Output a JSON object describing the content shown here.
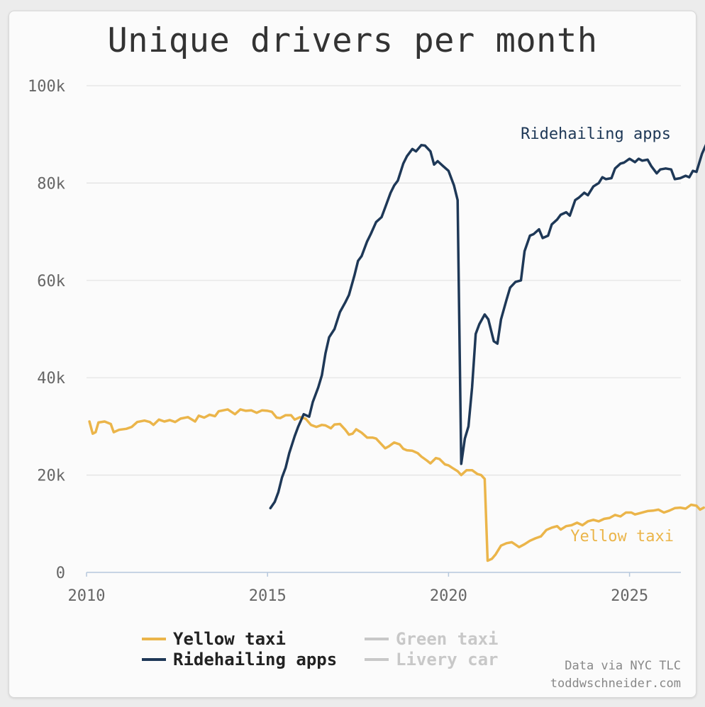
{
  "title": "Unique drivers per month",
  "credits": [
    "Data via NYC TLC",
    "toddwschneider.com"
  ],
  "colors": {
    "yellow": "#ebb54a",
    "ridehailing": "#1e3857",
    "inactive": "#c8c8c8",
    "grid": "#e2e2e2",
    "axis": "#b6c8dc",
    "tick_text": "#666666"
  },
  "legend": [
    {
      "label": "Yellow taxi",
      "color": "#ebb54a",
      "active": true
    },
    {
      "label": "Ridehailing apps",
      "color": "#1e3857",
      "active": true
    },
    {
      "label": "Green taxi",
      "color": "#c8c8c8",
      "active": false
    },
    {
      "label": "Livery car",
      "color": "#c8c8c8",
      "active": false
    }
  ],
  "chart_data": {
    "type": "line",
    "title": "Unique drivers per month",
    "xlabel": "",
    "ylabel": "",
    "xlim": [
      2010,
      2026.3
    ],
    "ylim": [
      0,
      100000
    ],
    "x_ticks": [
      2010,
      2015,
      2020,
      2025
    ],
    "x_tick_labels": [
      "2010",
      "2015",
      "2020",
      "2025"
    ],
    "y_ticks": [
      0,
      20000,
      40000,
      60000,
      80000,
      100000
    ],
    "y_tick_labels": [
      "0",
      "20k",
      "40k",
      "60k",
      "80k",
      "100k"
    ],
    "grid": true,
    "series": [
      {
        "name": "Yellow taxi",
        "color": "#ebb54a",
        "direct_label": "Yellow taxi",
        "points": [
          [
            2010.08,
            31000
          ],
          [
            2010.17,
            28500
          ],
          [
            2010.25,
            28800
          ],
          [
            2010.33,
            30800
          ],
          [
            2010.5,
            31000
          ],
          [
            2010.67,
            30500
          ],
          [
            2010.75,
            28800
          ],
          [
            2010.9,
            29300
          ],
          [
            2011.1,
            29500
          ],
          [
            2011.25,
            29900
          ],
          [
            2011.4,
            30900
          ],
          [
            2011.6,
            31200
          ],
          [
            2011.75,
            30900
          ],
          [
            2011.85,
            30300
          ],
          [
            2012.0,
            31400
          ],
          [
            2012.15,
            31000
          ],
          [
            2012.3,
            31300
          ],
          [
            2012.45,
            30900
          ],
          [
            2012.6,
            31600
          ],
          [
            2012.8,
            31900
          ],
          [
            2013.0,
            31000
          ],
          [
            2013.1,
            32200
          ],
          [
            2013.25,
            31800
          ],
          [
            2013.4,
            32400
          ],
          [
            2013.55,
            32100
          ],
          [
            2013.65,
            33100
          ],
          [
            2013.9,
            33500
          ],
          [
            2014.1,
            32500
          ],
          [
            2014.25,
            33500
          ],
          [
            2014.4,
            33200
          ],
          [
            2014.55,
            33300
          ],
          [
            2014.7,
            32800
          ],
          [
            2014.85,
            33300
          ],
          [
            2015.0,
            33200
          ],
          [
            2015.12,
            33000
          ],
          [
            2015.25,
            31800
          ],
          [
            2015.35,
            31700
          ],
          [
            2015.5,
            32300
          ],
          [
            2015.65,
            32300
          ],
          [
            2015.75,
            31400
          ],
          [
            2015.9,
            31900
          ],
          [
            2016.05,
            31600
          ],
          [
            2016.2,
            30300
          ],
          [
            2016.35,
            29900
          ],
          [
            2016.5,
            30300
          ],
          [
            2016.6,
            30200
          ],
          [
            2016.75,
            29600
          ],
          [
            2016.85,
            30400
          ],
          [
            2017.0,
            30500
          ],
          [
            2017.15,
            29300
          ],
          [
            2017.25,
            28300
          ],
          [
            2017.35,
            28500
          ],
          [
            2017.45,
            29400
          ],
          [
            2017.6,
            28700
          ],
          [
            2017.75,
            27700
          ],
          [
            2017.9,
            27700
          ],
          [
            2018.0,
            27500
          ],
          [
            2018.1,
            26700
          ],
          [
            2018.25,
            25500
          ],
          [
            2018.35,
            25900
          ],
          [
            2018.5,
            26700
          ],
          [
            2018.65,
            26300
          ],
          [
            2018.75,
            25400
          ],
          [
            2018.85,
            25100
          ],
          [
            2019.0,
            25000
          ],
          [
            2019.15,
            24500
          ],
          [
            2019.25,
            23800
          ],
          [
            2019.4,
            23000
          ],
          [
            2019.5,
            22400
          ],
          [
            2019.65,
            23500
          ],
          [
            2019.75,
            23300
          ],
          [
            2019.9,
            22200
          ],
          [
            2020.0,
            22000
          ],
          [
            2020.1,
            21500
          ],
          [
            2020.25,
            20800
          ],
          [
            2020.35,
            20000
          ],
          [
            2020.5,
            21000
          ],
          [
            2020.65,
            21000
          ],
          [
            2020.8,
            20200
          ],
          [
            2020.9,
            20000
          ],
          [
            2021.0,
            19200
          ],
          [
            2021.08,
            2400
          ],
          [
            2021.2,
            2800
          ],
          [
            2021.3,
            3700
          ],
          [
            2021.45,
            5500
          ],
          [
            2021.6,
            6000
          ],
          [
            2021.75,
            6200
          ],
          [
            2021.85,
            5700
          ],
          [
            2021.95,
            5200
          ],
          [
            2022.1,
            5800
          ],
          [
            2022.25,
            6500
          ],
          [
            2022.4,
            7000
          ],
          [
            2022.55,
            7400
          ],
          [
            2022.7,
            8700
          ],
          [
            2022.85,
            9200
          ],
          [
            2023.0,
            9500
          ],
          [
            2023.1,
            8800
          ],
          [
            2023.25,
            9500
          ],
          [
            2023.4,
            9700
          ],
          [
            2023.55,
            10200
          ],
          [
            2023.7,
            9700
          ],
          [
            2023.85,
            10500
          ],
          [
            2024.0,
            10800
          ],
          [
            2024.15,
            10500
          ],
          [
            2024.3,
            11000
          ],
          [
            2024.45,
            11200
          ],
          [
            2024.6,
            11800
          ],
          [
            2024.75,
            11500
          ],
          [
            2024.9,
            12300
          ],
          [
            2025.05,
            12300
          ],
          [
            2025.15,
            11900
          ],
          [
            2025.3,
            12200
          ],
          [
            2025.5,
            12600
          ],
          [
            2025.65,
            12700
          ],
          [
            2025.8,
            12900
          ],
          [
            2025.95,
            12300
          ],
          [
            2026.1,
            12700
          ],
          [
            2026.25,
            13200
          ],
          [
            2026.4,
            13300
          ],
          [
            2026.55,
            13100
          ],
          [
            2026.7,
            13900
          ],
          [
            2026.85,
            13700
          ],
          [
            2026.95,
            12900
          ],
          [
            2027.05,
            13300
          ]
        ]
      },
      {
        "name": "Ridehailing apps",
        "color": "#1e3857",
        "direct_label": "Ridehailing apps",
        "points": [
          [
            2015.08,
            13200
          ],
          [
            2015.2,
            14500
          ],
          [
            2015.3,
            16500
          ],
          [
            2015.4,
            19500
          ],
          [
            2015.5,
            21500
          ],
          [
            2015.6,
            24500
          ],
          [
            2015.75,
            28000
          ],
          [
            2015.85,
            30000
          ],
          [
            2016.0,
            32500
          ],
          [
            2016.15,
            32000
          ],
          [
            2016.25,
            35000
          ],
          [
            2016.4,
            38000
          ],
          [
            2016.5,
            40500
          ],
          [
            2016.6,
            45000
          ],
          [
            2016.7,
            48300
          ],
          [
            2016.85,
            50000
          ],
          [
            2017.0,
            53500
          ],
          [
            2017.15,
            55500
          ],
          [
            2017.25,
            57000
          ],
          [
            2017.4,
            61000
          ],
          [
            2017.5,
            64000
          ],
          [
            2017.6,
            65000
          ],
          [
            2017.75,
            68000
          ],
          [
            2017.85,
            69500
          ],
          [
            2018.0,
            72000
          ],
          [
            2018.15,
            73000
          ],
          [
            2018.25,
            75000
          ],
          [
            2018.4,
            78000
          ],
          [
            2018.5,
            79500
          ],
          [
            2018.6,
            80500
          ],
          [
            2018.75,
            84000
          ],
          [
            2018.85,
            85500
          ],
          [
            2019.0,
            87000
          ],
          [
            2019.1,
            86500
          ],
          [
            2019.25,
            87800
          ],
          [
            2019.35,
            87700
          ],
          [
            2019.5,
            86500
          ],
          [
            2019.6,
            83800
          ],
          [
            2019.7,
            84500
          ],
          [
            2019.85,
            83500
          ],
          [
            2020.0,
            82500
          ],
          [
            2020.15,
            79500
          ],
          [
            2020.25,
            76500
          ],
          [
            2020.35,
            22300
          ],
          [
            2020.45,
            27500
          ],
          [
            2020.55,
            30000
          ],
          [
            2020.65,
            38000
          ],
          [
            2020.75,
            49000
          ],
          [
            2020.85,
            51000
          ],
          [
            2021.0,
            53000
          ],
          [
            2021.1,
            52000
          ],
          [
            2021.25,
            47500
          ],
          [
            2021.35,
            47000
          ],
          [
            2021.45,
            52000
          ],
          [
            2021.6,
            56000
          ],
          [
            2021.7,
            58500
          ],
          [
            2021.85,
            59700
          ],
          [
            2022.0,
            60000
          ],
          [
            2022.1,
            66000
          ],
          [
            2022.25,
            69200
          ],
          [
            2022.35,
            69500
          ],
          [
            2022.5,
            70500
          ],
          [
            2022.6,
            68700
          ],
          [
            2022.75,
            69200
          ],
          [
            2022.85,
            71500
          ],
          [
            2023.0,
            72500
          ],
          [
            2023.1,
            73500
          ],
          [
            2023.25,
            74000
          ],
          [
            2023.35,
            73300
          ],
          [
            2023.5,
            76500
          ],
          [
            2023.6,
            77000
          ],
          [
            2023.75,
            78000
          ],
          [
            2023.85,
            77500
          ],
          [
            2024.0,
            79300
          ],
          [
            2024.15,
            80000
          ],
          [
            2024.25,
            81200
          ],
          [
            2024.35,
            80800
          ],
          [
            2024.5,
            81000
          ],
          [
            2024.6,
            83000
          ],
          [
            2024.75,
            84000
          ],
          [
            2024.85,
            84200
          ],
          [
            2025.0,
            85000
          ],
          [
            2025.15,
            84300
          ],
          [
            2025.25,
            85000
          ],
          [
            2025.35,
            84600
          ],
          [
            2025.5,
            84800
          ],
          [
            2025.6,
            83500
          ],
          [
            2025.75,
            82000
          ],
          [
            2025.85,
            82800
          ],
          [
            2026.0,
            83000
          ],
          [
            2026.15,
            82800
          ],
          [
            2026.25,
            80800
          ],
          [
            2026.4,
            81000
          ],
          [
            2026.55,
            81500
          ],
          [
            2026.65,
            81200
          ],
          [
            2026.75,
            82500
          ],
          [
            2026.85,
            82300
          ],
          [
            2027.0,
            86000
          ],
          [
            2027.15,
            88500
          ],
          [
            2027.3,
            88000
          ],
          [
            2027.45,
            86200
          ],
          [
            2027.55,
            87200
          ]
        ]
      }
    ],
    "annotations": [
      "Ridehailing apps",
      "Yellow taxi"
    ]
  }
}
